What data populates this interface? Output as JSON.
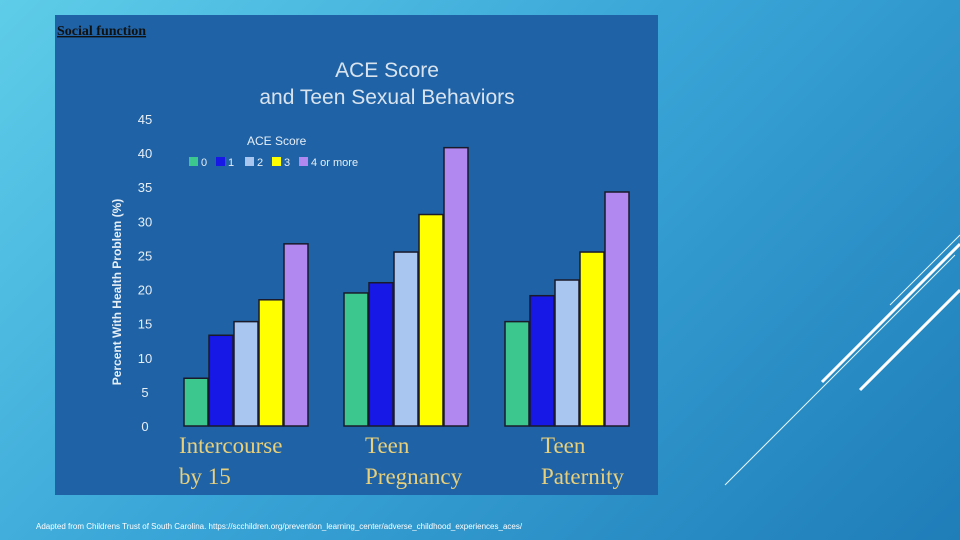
{
  "section_label": "Social function",
  "caption": "Adapted from Childrens Trust of South Carolina. https://scchildren.org/prevention_learning_center/adverse_childhood_experiences_aces/",
  "chart_data": {
    "type": "bar",
    "title_line1": "ACE Score",
    "title_line2": "and Teen Sexual Behaviors",
    "ylabel": "Percent With Health Problem  (%)",
    "xlabel": "",
    "ylim": [
      0,
      45
    ],
    "yticks": [
      0,
      5,
      10,
      15,
      20,
      25,
      30,
      35,
      40,
      45
    ],
    "grid": false,
    "legend_title": "ACE Score",
    "legend_position": "top-left",
    "categories": [
      [
        "Intercourse",
        "by 15"
      ],
      [
        "Teen",
        "Pregnancy"
      ],
      [
        "Teen",
        "Paternity"
      ]
    ],
    "series": [
      {
        "name": "0",
        "color": "#3cc78f",
        "values": [
          7,
          19.5,
          15.3
        ]
      },
      {
        "name": "1",
        "color": "#1717e6",
        "values": [
          13.3,
          21,
          19.1
        ]
      },
      {
        "name": "2",
        "color": "#a9c6f0",
        "values": [
          15.3,
          25.5,
          21.4
        ]
      },
      {
        "name": "3",
        "color": "#ffff00",
        "values": [
          18.5,
          31,
          25.5
        ]
      },
      {
        "name": "4 or more",
        "color": "#b088f0",
        "values": [
          26.7,
          40.8,
          34.3
        ]
      }
    ]
  }
}
